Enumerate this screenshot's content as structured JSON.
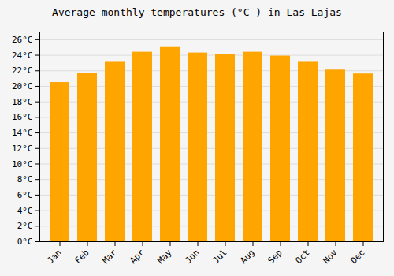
{
  "chart_data": {
    "type": "bar",
    "title": "Average monthly temperatures (°C ) in Las Lajas",
    "categories": [
      "Jan",
      "Feb",
      "Mar",
      "Apr",
      "May",
      "Jun",
      "Jul",
      "Aug",
      "Sep",
      "Oct",
      "Nov",
      "Dec"
    ],
    "values": [
      20.5,
      21.7,
      23.2,
      24.4,
      25.1,
      24.3,
      24.1,
      24.4,
      23.9,
      23.2,
      22.1,
      21.6
    ],
    "color": "#FFA500",
    "ylim": [
      0,
      27
    ],
    "yticks": [
      {
        "value": 0,
        "label": "0°C"
      },
      {
        "value": 2,
        "label": "2°C"
      },
      {
        "value": 4,
        "label": "4°C"
      },
      {
        "value": 6,
        "label": "6°C"
      },
      {
        "value": 8,
        "label": "8°C"
      },
      {
        "value": 10,
        "label": "10°C"
      },
      {
        "value": 12,
        "label": "12°C"
      },
      {
        "value": 14,
        "label": "14°C"
      },
      {
        "value": 16,
        "label": "16°C"
      },
      {
        "value": 18,
        "label": "18°C"
      },
      {
        "value": 20,
        "label": "20°C"
      },
      {
        "value": 22,
        "label": "22°C"
      },
      {
        "value": 24,
        "label": "24°C"
      },
      {
        "value": 26,
        "label": "26°C"
      }
    ],
    "grid": true
  }
}
